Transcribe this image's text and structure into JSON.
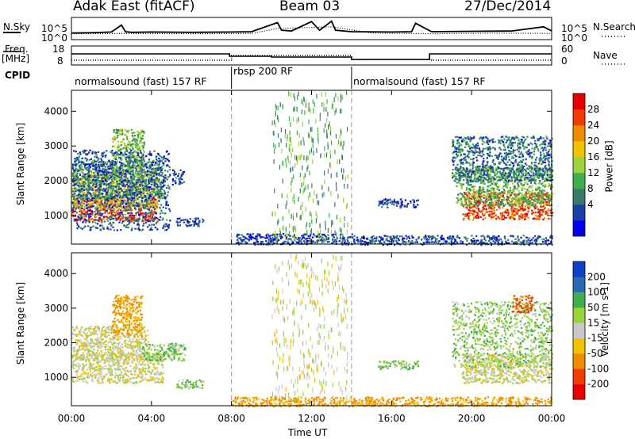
{
  "header": {
    "radar": "Adak East (fitACF)",
    "beam": "Beam 03",
    "date": "27/Dec/2014"
  },
  "side_labels": {
    "nsky": "N.Sky",
    "freq_line1": "Freq.",
    "freq_line2": "[MHz]",
    "cpid": "CPID",
    "nsearch": "N.Search",
    "nave": "Nave"
  },
  "colors": {
    "power": [
      "#0000ee",
      "#1b3fa8",
      "#3a7a6a",
      "#3fae4d",
      "#9fd23c",
      "#f2c200",
      "#f08c00",
      "#f03c00",
      "#e80000"
    ],
    "velocity": [
      "#e80000",
      "#f03c00",
      "#f08c00",
      "#f2c200",
      "#c8c8c8",
      "#9ad23c",
      "#3fae4d",
      "#2a6ab0",
      "#1040c8"
    ],
    "grid_dash": "#999999"
  },
  "chart_data": [
    {
      "type": "line",
      "panel": "noise",
      "left_axis_label": "N.Sky",
      "right_axis_label": "N.Search",
      "left_ticks": [
        "10^5",
        "10^0"
      ],
      "right_ticks": [
        "10^5",
        "10^0"
      ],
      "x_range_hours": [
        0,
        24
      ],
      "series": [
        {
          "name": "N.Sky",
          "style": "solid",
          "x": [
            0,
            1,
            2,
            2.5,
            2.7,
            3,
            4,
            6,
            8,
            9,
            10.3,
            10.5,
            11,
            12,
            12.4,
            13,
            13.2,
            14,
            16,
            17,
            17.2,
            18,
            20,
            22,
            23.6,
            24
          ],
          "y": [
            1.2,
            1.3,
            1.5,
            3.5,
            1.6,
            1.4,
            1.5,
            1.4,
            1.5,
            1.6,
            4.2,
            2.0,
            1.8,
            4.5,
            2.0,
            4.6,
            2.0,
            1.6,
            1.5,
            1.6,
            4.0,
            1.6,
            1.7,
            1.8,
            3.0,
            1.8
          ]
        },
        {
          "name": "N.Search",
          "style": "dotted",
          "x": [
            0,
            3,
            6,
            9,
            10.3,
            12,
            13,
            15,
            18,
            21,
            24
          ],
          "y": [
            1.0,
            1.1,
            1.0,
            1.1,
            2.5,
            2.8,
            3.0,
            1.2,
            1.0,
            1.2,
            1.1
          ]
        }
      ]
    },
    {
      "type": "line",
      "panel": "frequency",
      "left_axis_label": "Freq. [MHz]",
      "right_axis_label": "Nave",
      "left_ticks": [
        "18",
        "8"
      ],
      "right_ticks": [
        "60",
        "0"
      ],
      "series": [
        {
          "name": "Freq.",
          "style": "solid",
          "x": [
            0,
            7.9,
            7.9,
            10,
            10,
            14,
            14,
            17.9,
            17.9,
            24
          ],
          "y": [
            14,
            14,
            12.5,
            12.5,
            12,
            12,
            10.5,
            10.5,
            14,
            14
          ]
        },
        {
          "name": "Nave",
          "style": "dotted",
          "x": [
            0,
            8,
            8,
            14,
            14,
            18,
            18,
            24
          ],
          "y": [
            12,
            12,
            30,
            30,
            14,
            14,
            12,
            12
          ]
        }
      ]
    },
    {
      "type": "table",
      "panel": "cpid",
      "label": "CPID",
      "segments": [
        {
          "start_hour": 0,
          "end_hour": 8,
          "text": "normalsound (fast) 157 RF"
        },
        {
          "start_hour": 8,
          "end_hour": 14,
          "text": "rbsp 200 RF"
        },
        {
          "start_hour": 14,
          "end_hour": 24,
          "text": "normalsound (fast) 157 RF"
        }
      ]
    },
    {
      "type": "heatmap",
      "panel": "power",
      "ylabel": "Slant Range [km]",
      "y_ticks": [
        "4000",
        "3000",
        "2000",
        "1000"
      ],
      "ylim_km": [
        180,
        4600
      ],
      "xlim_hours": [
        0,
        24
      ],
      "colorbar_label": "Power [dB]",
      "colorbar_ticks": [
        "28",
        "24",
        "20",
        "16",
        "12",
        "8",
        "4"
      ],
      "colorbar_range_db": [
        0,
        32
      ],
      "regions": [
        {
          "t0": 0.0,
          "t1": 4.3,
          "r0": 850,
          "r1": 1500,
          "kind": "power",
          "level": 27
        },
        {
          "t0": 0.0,
          "t1": 4.3,
          "r0": 1200,
          "r1": 2300,
          "kind": "power",
          "level": 18
        },
        {
          "t0": 0.0,
          "t1": 4.6,
          "r0": 1500,
          "r1": 2600,
          "kind": "power",
          "level": 10
        },
        {
          "t0": 2.0,
          "t1": 3.6,
          "r0": 2200,
          "r1": 3500,
          "kind": "power",
          "level": 14
        },
        {
          "t0": 0.0,
          "t1": 4.9,
          "r0": 600,
          "r1": 2900,
          "kind": "power",
          "level": 6
        },
        {
          "t0": 5.2,
          "t1": 6.6,
          "r0": 700,
          "r1": 950,
          "kind": "power",
          "level": 6
        },
        {
          "t0": 5.0,
          "t1": 5.6,
          "r0": 1900,
          "r1": 2350,
          "kind": "power",
          "level": 6
        },
        {
          "t0": 8.2,
          "t1": 14.0,
          "r0": 180,
          "r1": 500,
          "kind": "power",
          "level": 5
        },
        {
          "t0": 10.0,
          "t1": 13.8,
          "r0": 300,
          "r1": 4600,
          "kind": "power",
          "level": 12
        },
        {
          "t0": 15.3,
          "t1": 17.3,
          "r0": 1250,
          "r1": 1500,
          "kind": "power",
          "level": 5
        },
        {
          "t0": 19.5,
          "t1": 24.0,
          "r0": 900,
          "r1": 1700,
          "kind": "power",
          "level": 27
        },
        {
          "t0": 19.2,
          "t1": 24.0,
          "r0": 1300,
          "r1": 2400,
          "kind": "power",
          "level": 13
        },
        {
          "t0": 19.0,
          "t1": 24.0,
          "r0": 2000,
          "r1": 3300,
          "kind": "power",
          "level": 8
        },
        {
          "t0": 14.0,
          "t1": 24.0,
          "r0": 180,
          "r1": 450,
          "kind": "power",
          "level": 6
        }
      ]
    },
    {
      "type": "heatmap",
      "panel": "velocity",
      "ylabel": "Slant Range [km]",
      "xlabel": "Time UT",
      "x_ticks": [
        "00:00",
        "04:00",
        "08:00",
        "12:00",
        "16:00",
        "20:00",
        "00:00"
      ],
      "y_ticks": [
        "4000",
        "3000",
        "2000",
        "1000"
      ],
      "ylim_km": [
        180,
        4600
      ],
      "xlim_hours": [
        0,
        24
      ],
      "colorbar_label": "Velocity [m s-1]",
      "colorbar_ticks": [
        "200",
        "100",
        "50",
        "15",
        "-15",
        "-50",
        "-100",
        "-200"
      ],
      "colorbar_range_ms": [
        -250,
        250
      ],
      "regions": [
        {
          "t0": 0.0,
          "t1": 4.6,
          "r0": 850,
          "r1": 1700,
          "kind": "vel",
          "level": 0
        },
        {
          "t0": 0.0,
          "t1": 3.8,
          "r0": 1500,
          "r1": 2500,
          "kind": "vel",
          "level": 0
        },
        {
          "t0": 2.0,
          "t1": 3.5,
          "r0": 2200,
          "r1": 3400,
          "kind": "vel",
          "level": -60
        },
        {
          "t0": 3.5,
          "t1": 5.7,
          "r0": 1500,
          "r1": 2000,
          "kind": "vel",
          "level": 40
        },
        {
          "t0": 5.2,
          "t1": 6.6,
          "r0": 700,
          "r1": 950,
          "kind": "vel",
          "level": 40
        },
        {
          "t0": 10.0,
          "t1": 13.8,
          "r0": 300,
          "r1": 4600,
          "kind": "vel",
          "level": 5
        },
        {
          "t0": 8.0,
          "t1": 24.0,
          "r0": 180,
          "r1": 450,
          "kind": "vel",
          "level": -60
        },
        {
          "t0": 15.3,
          "t1": 17.3,
          "r0": 1250,
          "r1": 1500,
          "kind": "vel",
          "level": 40
        },
        {
          "t0": 19.5,
          "t1": 24.0,
          "r0": 850,
          "r1": 1700,
          "kind": "vel",
          "level": 0
        },
        {
          "t0": 19.0,
          "t1": 24.0,
          "r0": 1300,
          "r1": 3200,
          "kind": "vel",
          "level": 35
        },
        {
          "t0": 22.0,
          "t1": 23.0,
          "r0": 2900,
          "r1": 3400,
          "kind": "vel",
          "level": -120
        }
      ]
    }
  ]
}
